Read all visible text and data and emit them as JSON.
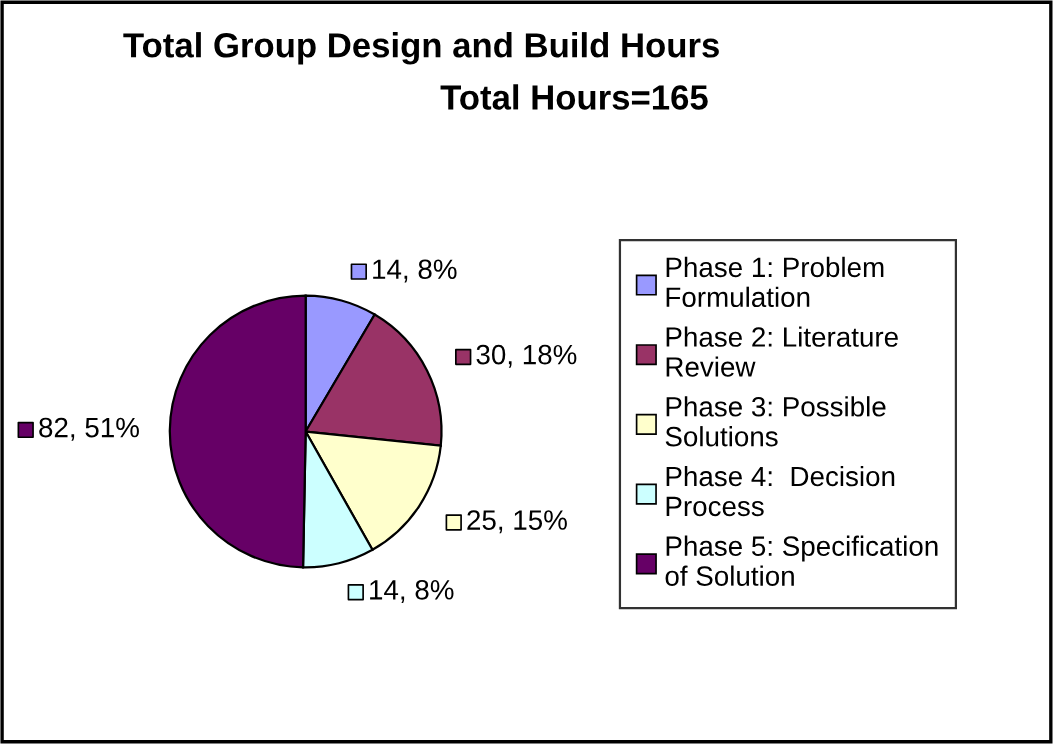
{
  "chart_data": {
    "type": "pie",
    "title": "Total Group Design and Build Hours",
    "subtitle": "Total Hours=165",
    "categories": [
      "Phase 1: Problem\nFormulation",
      "Phase 2: Literature\nReview",
      "Phase 3: Possible\nSolutions",
      "Phase 4:  Decision\nProcess",
      "Phase 5: Specification\nof Solution"
    ],
    "values": [
      14,
      30,
      25,
      14,
      82
    ],
    "colors": [
      "#9999ff",
      "#993366",
      "#ffffcc",
      "#ccffff",
      "#660066"
    ],
    "value_labels": [
      "14, 8%",
      "30, 18%",
      "25, 15%",
      "14, 8%",
      "82, 51%"
    ],
    "legend": "right"
  }
}
